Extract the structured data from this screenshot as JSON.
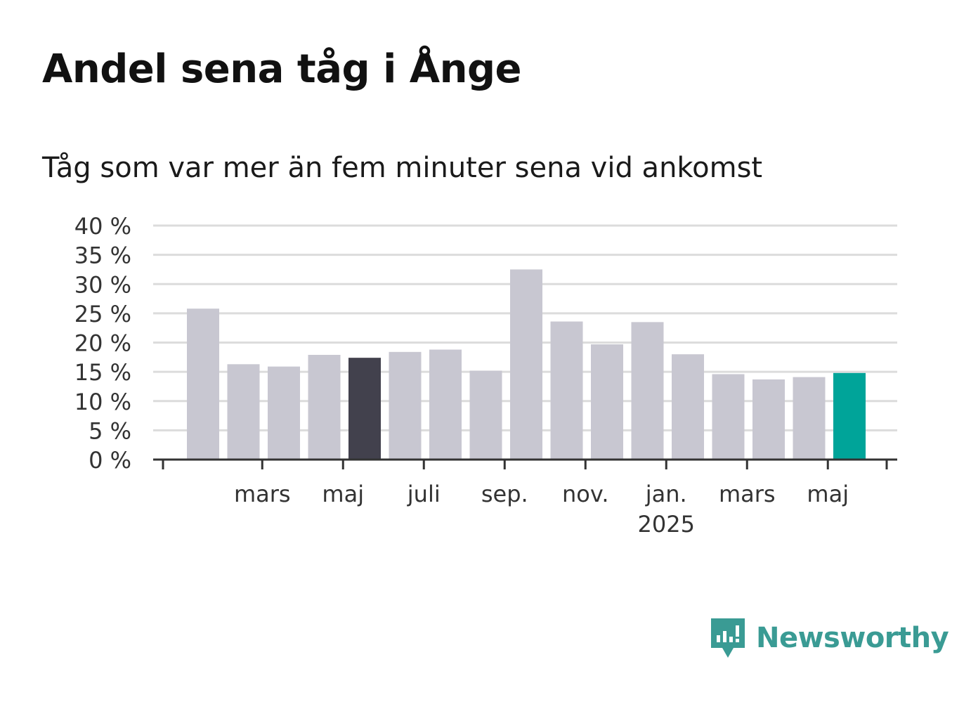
{
  "title": "Andel sena tåg i Ånge",
  "subtitle": "Tåg som var mer än fem minuter sena vid ankomst",
  "brand": {
    "name": "Newsworthy",
    "color": "#3a9b94",
    "icon": "newsworthy-logo-icon"
  },
  "colors": {
    "bar_default": "#c8c7d1",
    "bar_highlight_dark": "#42414d",
    "bar_highlight_accent": "#00a499",
    "grid": "#dcdcdc",
    "axis": "#333333",
    "tick_text": "#333333"
  },
  "chart_data": {
    "type": "bar",
    "title": "Tåg som var mer än fem minuter sena vid ankomst",
    "xlabel": "",
    "ylabel": "",
    "ylim": [
      0,
      40
    ],
    "y_ticks": [
      0,
      5,
      10,
      15,
      20,
      25,
      30,
      35,
      40
    ],
    "y_tick_labels": [
      "0 %",
      "5 %",
      "10 %",
      "15 %",
      "20 %",
      "25 %",
      "30 %",
      "35 %",
      "40 %"
    ],
    "grid": true,
    "x_tick_labels": [
      {
        "label": "mars",
        "sub": ""
      },
      {
        "label": "maj",
        "sub": ""
      },
      {
        "label": "juli",
        "sub": ""
      },
      {
        "label": "sep.",
        "sub": ""
      },
      {
        "label": "nov.",
        "sub": ""
      },
      {
        "label": "jan.",
        "sub": "2025"
      },
      {
        "label": "mars",
        "sub": ""
      },
      {
        "label": "maj",
        "sub": ""
      }
    ],
    "values": [
      25.8,
      16.3,
      15.9,
      17.9,
      17.4,
      18.4,
      18.8,
      15.2,
      32.5,
      23.6,
      19.7,
      23.5,
      18.0,
      14.6,
      13.7,
      14.1,
      14.8
    ],
    "highlight": {
      "dark_index": 4,
      "accent_index": 16
    }
  }
}
